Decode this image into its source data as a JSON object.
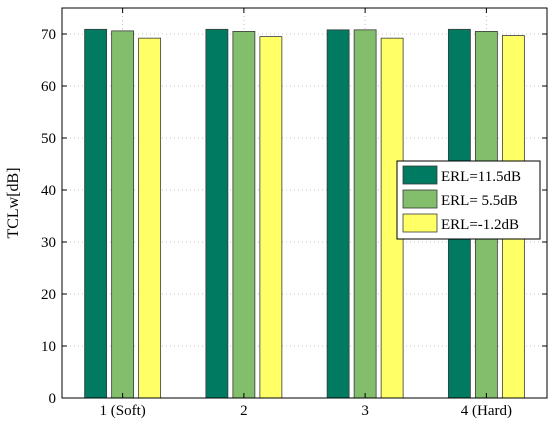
{
  "chart_data": {
    "type": "bar",
    "categories": [
      "1 (Soft)",
      "2",
      "3",
      "4 (Hard)"
    ],
    "series": [
      {
        "name": "ERL=11.5dB",
        "values": [
          70.9,
          70.9,
          70.8,
          70.9
        ]
      },
      {
        "name": "ERL= 5.5dB",
        "values": [
          70.6,
          70.5,
          70.8,
          70.5
        ]
      },
      {
        "name": "ERL=-1.2dB",
        "values": [
          69.2,
          69.5,
          69.2,
          69.7
        ]
      }
    ],
    "colors": [
      "#007a60",
      "#82be6b",
      "#ffff66"
    ],
    "xlabel": "",
    "ylabel": "TCLw[dB]",
    "ylim": [
      0,
      75
    ],
    "yticks": [
      0,
      10,
      20,
      30,
      40,
      50,
      60,
      70
    ],
    "grid": true,
    "legend_position": "right"
  }
}
